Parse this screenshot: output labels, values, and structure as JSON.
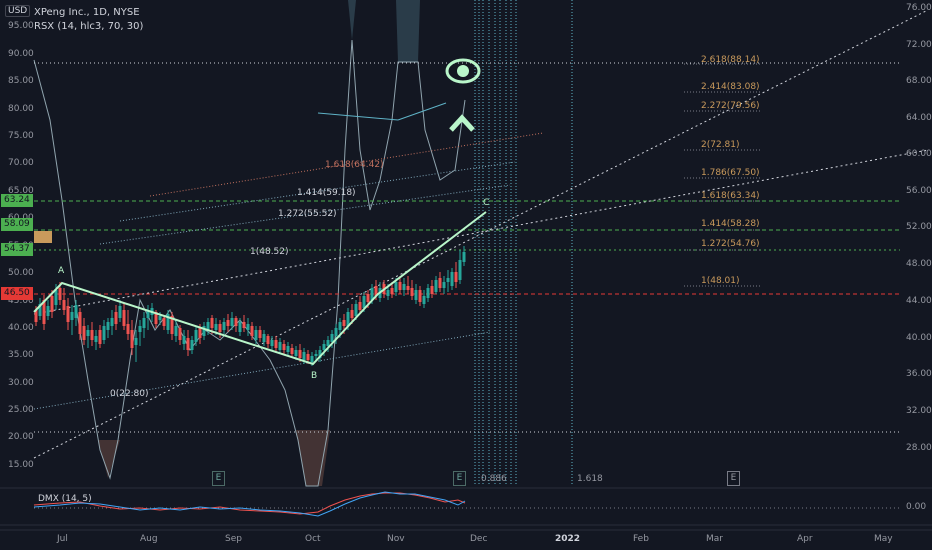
{
  "header": {
    "currency": "USD",
    "title": "XPeng Inc., 1D, NYSE",
    "indicator": "RSX (14, hlc3, 70, 30)",
    "dmx_label": "DMX (14, 5)"
  },
  "left_axis": [
    "95.00",
    "90.00",
    "85.00",
    "80.00",
    "75.00",
    "70.00",
    "65.00",
    "60.00",
    "55.00",
    "50.00",
    "45.00",
    "40.00",
    "35.00",
    "30.00",
    "25.00",
    "20.00",
    "15.00"
  ],
  "right_axis": [
    "76.00",
    "72.00",
    "68.00",
    "64.00",
    "60.00",
    "56.00",
    "52.00",
    "48.00",
    "44.00",
    "40.00",
    "36.00",
    "32.00",
    "28.00",
    "0.00"
  ],
  "price_badges": [
    {
      "label": "63.24",
      "color": "#4caf50"
    },
    {
      "label": "58.09",
      "color": "#4caf50"
    },
    {
      "label": "54.37",
      "color": "#4caf50"
    },
    {
      "label": "46.50",
      "color": "#e53935"
    }
  ],
  "time_axis": [
    "Jul",
    "Aug",
    "Sep",
    "Oct",
    "Nov",
    "Dec",
    "2022",
    "Feb",
    "Mar",
    "Apr",
    "May"
  ],
  "pattern_points": [
    "A",
    "B",
    "C"
  ],
  "fib_right": [
    "2.618(88.14)",
    "2.414(83.08)",
    "2.272(79.56)",
    "2(72.81)",
    "1.786(67.50)",
    "1.618(63.34)",
    "1.414(58.28)",
    "1.272(54.76)",
    "1(48.01)"
  ],
  "fib_channel": [
    "1.618(64.42)",
    "1.414(59.18)",
    "1.272(55.52)",
    "1(48.52)",
    "0(22.80)"
  ],
  "fib_time": [
    "0.886",
    "1.618"
  ],
  "earnings_marker": "E",
  "colors": {
    "background": "#131722",
    "up": "#26a69a",
    "down": "#ef5350",
    "pattern": "#b9f6ca",
    "fib_green": "#4caf50"
  }
}
